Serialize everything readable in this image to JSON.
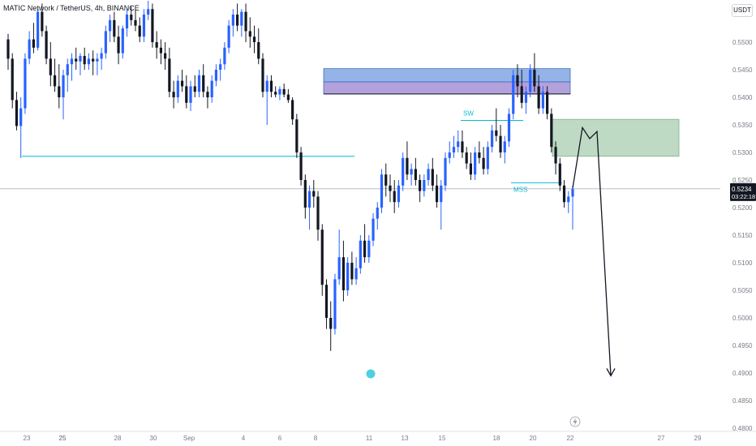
{
  "header": {
    "symbol_title": "MATIC Network / TetherUS, 4h, BINANCE",
    "currency_badge": "USDT"
  },
  "price_label": {
    "price": "0.5234",
    "countdown": "03:22:18"
  },
  "annotations": {
    "sweep_label": "SW",
    "mss_label": "MSS"
  },
  "colors": {
    "bull": "#2962ff",
    "bear": "#131722",
    "level_line": "#00bcd4",
    "blue_zone": "#5b8bd9",
    "purple_zone": "#8a6fc9",
    "green_zone": "#a8ceb0",
    "marker": "#4dd0e1"
  },
  "chart_data": {
    "type": "candlestick",
    "timeframe": "4h",
    "ylim": [
      0.48,
      0.555
    ],
    "y_ticks": [
      "0.5500",
      "0.5450",
      "0.5400",
      "0.5350",
      "0.5300",
      "0.5250",
      "0.5200",
      "0.5150",
      "0.5100",
      "0.5050",
      "0.5000",
      "0.4950",
      "0.4900",
      "0.4850",
      "0.4800"
    ],
    "x_ticks": [
      "23",
      "25",
      "28",
      "30",
      "Sep",
      "4",
      "6",
      "8",
      "11",
      "13",
      "15",
      "18",
      "20",
      "22",
      "25",
      "27",
      "29"
    ],
    "current_price": 0.5234,
    "levels": {
      "horizontal_level": 0.5293,
      "sweep_level": 0.5358,
      "mss_level": 0.5245
    },
    "zones": [
      {
        "kind": "blue",
        "low": 0.5428,
        "high": 0.5452
      },
      {
        "kind": "purple",
        "low": 0.5406,
        "high": 0.5428
      },
      {
        "kind": "green",
        "low": 0.5293,
        "high": 0.536
      }
    ],
    "projection_path": [
      {
        "x_label": "22",
        "price": 0.5235
      },
      {
        "x_label": "23",
        "price": 0.5345
      },
      {
        "x_label": "24",
        "price": 0.5325
      },
      {
        "x_label": "24",
        "price": 0.5338
      },
      {
        "x_label": "25",
        "price": 0.4895
      }
    ],
    "candles": [
      [
        0.5505,
        0.5515,
        0.545,
        0.547
      ],
      [
        0.547,
        0.548,
        0.538,
        0.5395
      ],
      [
        0.5395,
        0.541,
        0.534,
        0.5348
      ],
      [
        0.5348,
        0.54,
        0.529,
        0.538
      ],
      [
        0.538,
        0.548,
        0.537,
        0.547
      ],
      [
        0.547,
        0.552,
        0.546,
        0.5505
      ],
      [
        0.5505,
        0.5535,
        0.548,
        0.549
      ],
      [
        0.549,
        0.556,
        0.5485,
        0.5555
      ],
      [
        0.5555,
        0.557,
        0.551,
        0.552
      ],
      [
        0.552,
        0.553,
        0.546,
        0.547
      ],
      [
        0.547,
        0.55,
        0.542,
        0.544
      ],
      [
        0.544,
        0.547,
        0.541,
        0.542
      ],
      [
        0.542,
        0.546,
        0.538,
        0.54
      ],
      [
        0.54,
        0.545,
        0.536,
        0.544
      ],
      [
        0.544,
        0.547,
        0.541,
        0.546
      ],
      [
        0.546,
        0.548,
        0.543,
        0.547
      ],
      [
        0.547,
        0.549,
        0.545,
        0.5465
      ],
      [
        0.5465,
        0.548,
        0.544,
        0.5475
      ],
      [
        0.5475,
        0.549,
        0.545,
        0.546
      ],
      [
        0.546,
        0.548,
        0.545,
        0.547
      ],
      [
        0.547,
        0.5485,
        0.544,
        0.5465
      ],
      [
        0.5465,
        0.548,
        0.544,
        0.547
      ],
      [
        0.547,
        0.549,
        0.545,
        0.548
      ],
      [
        0.548,
        0.553,
        0.547,
        0.552
      ],
      [
        0.552,
        0.555,
        0.55,
        0.554
      ],
      [
        0.554,
        0.5555,
        0.55,
        0.551
      ],
      [
        0.551,
        0.553,
        0.546,
        0.548
      ],
      [
        0.548,
        0.553,
        0.547,
        0.5525
      ],
      [
        0.5525,
        0.556,
        0.551,
        0.555
      ],
      [
        0.555,
        0.5565,
        0.553,
        0.554
      ],
      [
        0.554,
        0.556,
        0.552,
        0.553
      ],
      [
        0.553,
        0.5545,
        0.55,
        0.551
      ],
      [
        0.551,
        0.556,
        0.55,
        0.555
      ],
      [
        0.555,
        0.5575,
        0.554,
        0.556
      ],
      [
        0.556,
        0.557,
        0.549,
        0.55
      ],
      [
        0.55,
        0.552,
        0.547,
        0.549
      ],
      [
        0.549,
        0.5505,
        0.546,
        0.548
      ],
      [
        0.548,
        0.55,
        0.545,
        0.547
      ],
      [
        0.547,
        0.549,
        0.54,
        0.541
      ],
      [
        0.541,
        0.543,
        0.538,
        0.54
      ],
      [
        0.54,
        0.544,
        0.539,
        0.543
      ],
      [
        0.543,
        0.545,
        0.541,
        0.542
      ],
      [
        0.542,
        0.544,
        0.538,
        0.539
      ],
      [
        0.539,
        0.543,
        0.5375,
        0.542
      ],
      [
        0.542,
        0.544,
        0.54,
        0.541
      ],
      [
        0.541,
        0.545,
        0.54,
        0.544
      ],
      [
        0.544,
        0.546,
        0.54,
        0.541
      ],
      [
        0.541,
        0.542,
        0.538,
        0.54
      ],
      [
        0.54,
        0.544,
        0.539,
        0.543
      ],
      [
        0.543,
        0.546,
        0.542,
        0.545
      ],
      [
        0.545,
        0.547,
        0.543,
        0.546
      ],
      [
        0.546,
        0.55,
        0.545,
        0.549
      ],
      [
        0.549,
        0.554,
        0.548,
        0.553
      ],
      [
        0.553,
        0.556,
        0.551,
        0.555
      ],
      [
        0.555,
        0.557,
        0.552,
        0.553
      ],
      [
        0.553,
        0.556,
        0.551,
        0.5555
      ],
      [
        0.5555,
        0.557,
        0.55,
        0.552
      ],
      [
        0.552,
        0.5545,
        0.549,
        0.551
      ],
      [
        0.551,
        0.553,
        0.548,
        0.55
      ],
      [
        0.55,
        0.5525,
        0.546,
        0.547
      ],
      [
        0.547,
        0.548,
        0.54,
        0.541
      ],
      [
        0.541,
        0.544,
        0.535,
        0.543
      ],
      [
        0.543,
        0.544,
        0.54,
        0.541
      ],
      [
        0.541,
        0.542,
        0.54,
        0.5405
      ],
      [
        0.5405,
        0.542,
        0.5395,
        0.5415
      ],
      [
        0.5415,
        0.5425,
        0.54,
        0.5405
      ],
      [
        0.5405,
        0.5415,
        0.539,
        0.5395
      ],
      [
        0.5395,
        0.54,
        0.535,
        0.536
      ],
      [
        0.536,
        0.537,
        0.529,
        0.53
      ],
      [
        0.53,
        0.531,
        0.524,
        0.525
      ],
      [
        0.525,
        0.526,
        0.518,
        0.52
      ],
      [
        0.52,
        0.524,
        0.516,
        0.523
      ],
      [
        0.523,
        0.525,
        0.52,
        0.522
      ],
      [
        0.522,
        0.523,
        0.514,
        0.516
      ],
      [
        0.516,
        0.517,
        0.504,
        0.506
      ],
      [
        0.506,
        0.507,
        0.498,
        0.5
      ],
      [
        0.5,
        0.503,
        0.494,
        0.498
      ],
      [
        0.498,
        0.508,
        0.497,
        0.507
      ],
      [
        0.507,
        0.516,
        0.506,
        0.511
      ],
      [
        0.511,
        0.514,
        0.503,
        0.505
      ],
      [
        0.505,
        0.511,
        0.504,
        0.51
      ],
      [
        0.51,
        0.512,
        0.506,
        0.507
      ],
      [
        0.507,
        0.511,
        0.506,
        0.509
      ],
      [
        0.509,
        0.515,
        0.508,
        0.514
      ],
      [
        0.514,
        0.517,
        0.51,
        0.511
      ],
      [
        0.511,
        0.515,
        0.51,
        0.514
      ],
      [
        0.514,
        0.519,
        0.513,
        0.518
      ],
      [
        0.518,
        0.521,
        0.516,
        0.52
      ],
      [
        0.52,
        0.527,
        0.519,
        0.526
      ],
      [
        0.526,
        0.528,
        0.522,
        0.524
      ],
      [
        0.524,
        0.526,
        0.521,
        0.523
      ],
      [
        0.523,
        0.525,
        0.519,
        0.521
      ],
      [
        0.521,
        0.525,
        0.52,
        0.524
      ],
      [
        0.524,
        0.53,
        0.523,
        0.529
      ],
      [
        0.529,
        0.532,
        0.525,
        0.526
      ],
      [
        0.526,
        0.528,
        0.524,
        0.527
      ],
      [
        0.527,
        0.529,
        0.524,
        0.525
      ],
      [
        0.525,
        0.526,
        0.521,
        0.523
      ],
      [
        0.523,
        0.526,
        0.522,
        0.525
      ],
      [
        0.525,
        0.528,
        0.524,
        0.527
      ],
      [
        0.527,
        0.529,
        0.523,
        0.524
      ],
      [
        0.524,
        0.526,
        0.52,
        0.521
      ],
      [
        0.521,
        0.525,
        0.516,
        0.524
      ],
      [
        0.524,
        0.53,
        0.523,
        0.529
      ],
      [
        0.529,
        0.532,
        0.528,
        0.53
      ],
      [
        0.53,
        0.533,
        0.529,
        0.531
      ],
      [
        0.531,
        0.534,
        0.53,
        0.532
      ],
      [
        0.532,
        0.534,
        0.529,
        0.53
      ],
      [
        0.53,
        0.531,
        0.527,
        0.528
      ],
      [
        0.528,
        0.53,
        0.525,
        0.526
      ],
      [
        0.526,
        0.531,
        0.525,
        0.53
      ],
      [
        0.53,
        0.532,
        0.528,
        0.529
      ],
      [
        0.529,
        0.531,
        0.526,
        0.527
      ],
      [
        0.527,
        0.532,
        0.526,
        0.531
      ],
      [
        0.531,
        0.535,
        0.53,
        0.534
      ],
      [
        0.534,
        0.538,
        0.532,
        0.533
      ],
      [
        0.533,
        0.535,
        0.529,
        0.53
      ],
      [
        0.53,
        0.533,
        0.528,
        0.532
      ],
      [
        0.532,
        0.538,
        0.531,
        0.537
      ],
      [
        0.537,
        0.545,
        0.536,
        0.544
      ],
      [
        0.544,
        0.546,
        0.54,
        0.542
      ],
      [
        0.542,
        0.545,
        0.538,
        0.539
      ],
      [
        0.539,
        0.542,
        0.537,
        0.541
      ],
      [
        0.541,
        0.546,
        0.54,
        0.545
      ],
      [
        0.545,
        0.548,
        0.541,
        0.542
      ],
      [
        0.542,
        0.544,
        0.537,
        0.538
      ],
      [
        0.538,
        0.542,
        0.537,
        0.541
      ],
      [
        0.541,
        0.542,
        0.536,
        0.537
      ],
      [
        0.537,
        0.538,
        0.53,
        0.531
      ],
      [
        0.531,
        0.532,
        0.526,
        0.528
      ],
      [
        0.528,
        0.529,
        0.523,
        0.524
      ],
      [
        0.524,
        0.525,
        0.52,
        0.521
      ],
      [
        0.521,
        0.523,
        0.519,
        0.522
      ],
      [
        0.522,
        0.524,
        0.516,
        0.5234
      ]
    ]
  }
}
